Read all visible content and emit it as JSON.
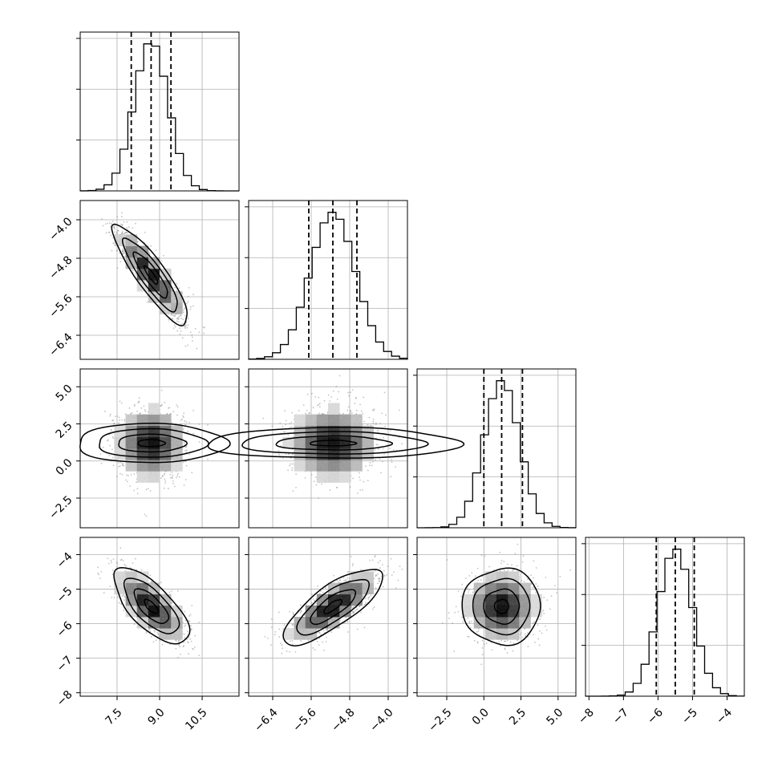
{
  "chart_data": {
    "type": "corner",
    "parameters": [
      {
        "range": [
          6.2,
          11.8
        ],
        "ticks": [
          7.5,
          9.0,
          10.5
        ],
        "tick_labels": [
          "7.5",
          "9.0",
          "10.5"
        ],
        "mean": 8.7,
        "sd": 0.6,
        "quantiles": [
          8.0,
          8.7,
          9.4
        ]
      },
      {
        "range": [
          -6.9,
          -3.6
        ],
        "ticks": [
          -6.4,
          -5.6,
          -4.8,
          -4.0
        ],
        "tick_labels": [
          "−6.4",
          "−5.6",
          "−4.8",
          "−4.0"
        ],
        "mean": -5.15,
        "sd": 0.47,
        "quantiles": [
          -5.65,
          -5.15,
          -4.65
        ]
      },
      {
        "range": [
          -4.5,
          6.2
        ],
        "ticks": [
          -2.5,
          0.0,
          2.5,
          5.0
        ],
        "tick_labels": [
          "−2.5",
          "0.0",
          "2.5",
          "5.0"
        ],
        "mean": 1.2,
        "sd": 1.2,
        "quantiles": [
          0.0,
          1.2,
          2.6
        ]
      },
      {
        "range": [
          -8.1,
          -3.5
        ],
        "ticks": [
          -8,
          -7,
          -6,
          -5,
          -4
        ],
        "tick_labels": [
          "−8",
          "−7",
          "−6",
          "−5",
          "−4"
        ],
        "mean": -5.5,
        "sd": 0.5,
        "quantiles": [
          -6.05,
          -5.5,
          -4.95
        ]
      }
    ],
    "correlations": [
      [
        0,
        1,
        -0.88
      ],
      [
        0,
        2,
        0.0
      ],
      [
        0,
        3,
        -0.7
      ],
      [
        1,
        2,
        0.0
      ],
      [
        1,
        3,
        0.78
      ],
      [
        2,
        3,
        0.0
      ]
    ],
    "histogram_bins": 20,
    "quantile_lines": "dashed",
    "grid": true,
    "colors": {
      "line": "#000000",
      "grid": "#b0b0b0",
      "points": "#7a7a7a"
    }
  }
}
